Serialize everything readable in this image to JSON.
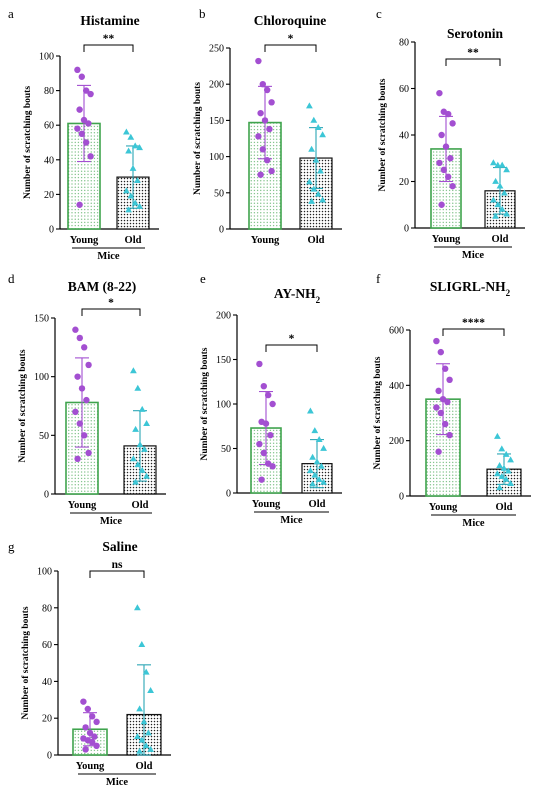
{
  "chart_data": [
    {
      "type": "bar",
      "letter": "a",
      "title": "Histamine",
      "title_sub": "",
      "categories": [
        "Young",
        "Old"
      ],
      "xlabel": "Mice",
      "ylabel": "Number of scratching bouts",
      "ylim": [
        0,
        100
      ],
      "yticks": [
        "0",
        "20",
        "40",
        "60",
        "80",
        "100"
      ],
      "series": [
        {
          "values": [
            61,
            30
          ],
          "error": [
            22,
            18
          ],
          "points": [
            [
              92,
              88,
              80,
              78,
              69,
              63,
              61,
              58,
              55,
              50,
              42,
              14
            ],
            [
              56,
              53,
              48,
              47,
              45,
              35,
              28,
              22,
              19,
              15,
              13,
              11
            ]
          ]
        }
      ],
      "significance": "**"
    },
    {
      "type": "bar",
      "letter": "b",
      "title": "Chloroquine",
      "title_sub": "",
      "categories": [
        "Young",
        "Old"
      ],
      "xlabel": "",
      "ylabel": "Number of scratching bouts",
      "ylim": [
        0,
        250
      ],
      "yticks": [
        "0",
        "50",
        "100",
        "150",
        "200",
        "250"
      ],
      "series": [
        {
          "values": [
            147,
            98
          ],
          "error": [
            50,
            42
          ],
          "points": [
            [
              232,
              200,
              192,
              175,
              160,
              150,
              138,
              128,
              110,
              95,
              80,
              75
            ],
            [
              170,
              150,
              140,
              130,
              110,
              95,
              80,
              65,
              55,
              48,
              40,
              38
            ]
          ]
        }
      ],
      "significance": "*"
    },
    {
      "type": "bar",
      "letter": "c",
      "title": "Serotonin",
      "title_sub": "",
      "categories": [
        "Young",
        "Old"
      ],
      "xlabel": "Mice",
      "ylabel": "Number of scratching bouts",
      "ylim": [
        0,
        80
      ],
      "yticks": [
        "0",
        "20",
        "40",
        "60",
        "80"
      ],
      "series": [
        {
          "values": [
            34,
            16
          ],
          "error": [
            14,
            10
          ],
          "points": [
            [
              58,
              50,
              49,
              45,
              40,
              35,
              30,
              28,
              25,
              22,
              18,
              10
            ],
            [
              28,
              27,
              27,
              25,
              20,
              18,
              15,
              12,
              10,
              8,
              6,
              5
            ]
          ]
        }
      ],
      "significance": "**"
    },
    {
      "type": "bar",
      "letter": "d",
      "title": "BAM (8-22)",
      "title_sub": "",
      "categories": [
        "Young",
        "Old"
      ],
      "xlabel": "Mice",
      "ylabel": "Number of scratching bouts",
      "ylim": [
        0,
        150
      ],
      "yticks": [
        "0",
        "50",
        "100",
        "150"
      ],
      "series": [
        {
          "values": [
            78,
            41
          ],
          "error": [
            38,
            30
          ],
          "points": [
            [
              140,
              133,
              125,
              110,
              100,
              90,
              80,
              70,
              60,
              50,
              35,
              30
            ],
            [
              105,
              90,
              72,
              60,
              55,
              42,
              38,
              30,
              25,
              20,
              15,
              10
            ]
          ]
        }
      ],
      "significance": "*"
    },
    {
      "type": "bar",
      "letter": "e",
      "title": "AY-NH",
      "title_sub": "2",
      "categories": [
        "Young",
        "Old"
      ],
      "xlabel": "Mice",
      "ylabel": "Number of scratching bouts",
      "ylim": [
        0,
        200
      ],
      "yticks": [
        "0",
        "50",
        "100",
        "150",
        "200"
      ],
      "series": [
        {
          "values": [
            73,
            33
          ],
          "error": [
            41,
            27
          ],
          "points": [
            [
              145,
              120,
              110,
              100,
              80,
              78,
              65,
              55,
              45,
              33,
              30,
              15
            ],
            [
              92,
              70,
              60,
              50,
              40,
              35,
              30,
              25,
              20,
              15,
              12,
              10
            ]
          ]
        }
      ],
      "significance": "*"
    },
    {
      "type": "bar",
      "letter": "f",
      "title": "SLIGRL-NH",
      "title_sub": "2",
      "categories": [
        "Young",
        "Old"
      ],
      "xlabel": "Mice",
      "ylabel": "Number of scratching bouts",
      "ylim": [
        0,
        600
      ],
      "yticks": [
        "0",
        "200",
        "400",
        "600"
      ],
      "series": [
        {
          "values": [
            350,
            97
          ],
          "error": [
            128,
            55
          ],
          "points": [
            [
              560,
              520,
              460,
              420,
              380,
              350,
              340,
              320,
              300,
              260,
              220,
              160
            ],
            [
              215,
              170,
              150,
              130,
              110,
              100,
              90,
              80,
              70,
              60,
              45,
              30
            ]
          ]
        }
      ],
      "significance": "****"
    },
    {
      "type": "bar",
      "letter": "g",
      "title": "Saline",
      "title_sub": "",
      "categories": [
        "Young",
        "Old"
      ],
      "xlabel": "Mice",
      "ylabel": "Number of scratching bouts",
      "ylim": [
        0,
        100
      ],
      "yticks": [
        "0",
        "20",
        "40",
        "60",
        "80",
        "100"
      ],
      "series": [
        {
          "values": [
            14,
            22
          ],
          "error": [
            9,
            27
          ],
          "points": [
            [
              29,
              25,
              21,
              18,
              15,
              12,
              10,
              9,
              8,
              7,
              5,
              3
            ],
            [
              80,
              60,
              45,
              35,
              25,
              18,
              12,
              10,
              8,
              5,
              3,
              2
            ]
          ]
        }
      ],
      "significance": "ns"
    }
  ]
}
